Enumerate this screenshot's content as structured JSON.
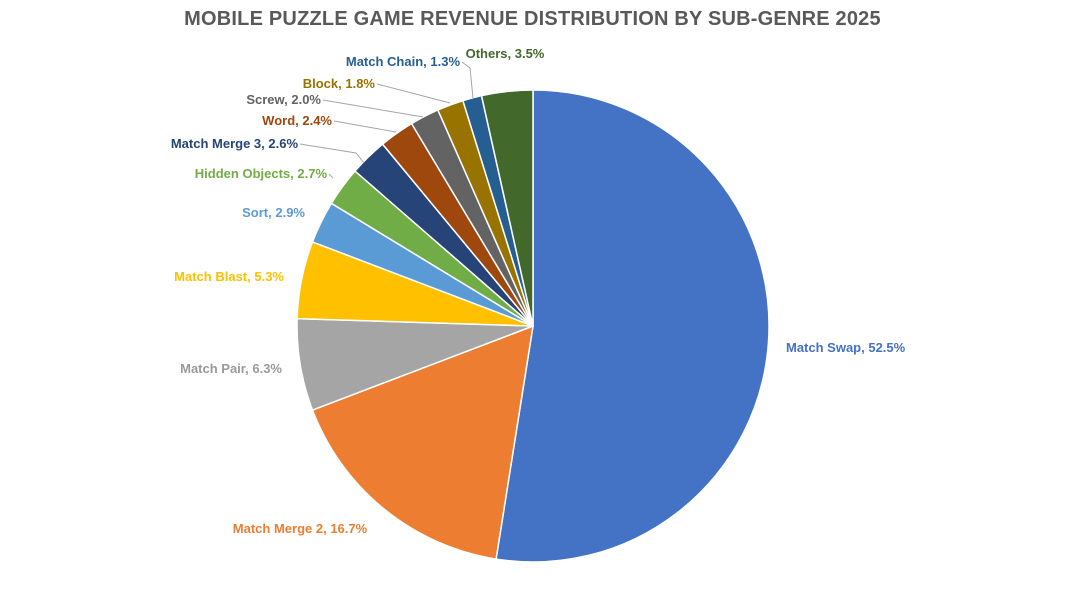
{
  "chart_data": {
    "type": "pie",
    "title": "MOBILE PUZZLE GAME REVENUE DISTRIBUTION BY SUB-GENRE 2025",
    "legend": "none",
    "data_labels": "category name and percentage",
    "slices": [
      {
        "label": "Match Swap, 52.5%",
        "category": "Match Swap",
        "value": 52.5,
        "color": "#4472C4"
      },
      {
        "label": "Match Merge 2, 16.7%",
        "category": "Match Merge 2",
        "value": 16.7,
        "color": "#ED7D31"
      },
      {
        "label": "Match Pair, 6.3%",
        "category": "Match Pair",
        "value": 6.3,
        "color": "#A5A5A5"
      },
      {
        "label": "Match Blast, 5.3%",
        "category": "Match Blast",
        "value": 5.3,
        "color": "#FFC000"
      },
      {
        "label": "Sort, 2.9%",
        "category": "Sort",
        "value": 2.9,
        "color": "#5B9BD5"
      },
      {
        "label": "Hidden Objects, 2.7%",
        "category": "Hidden Objects",
        "value": 2.7,
        "color": "#70AD47"
      },
      {
        "label": "Match Merge 3, 2.6%",
        "category": "Match Merge 3",
        "value": 2.6,
        "color": "#264478"
      },
      {
        "label": "Word, 2.4%",
        "category": "Word",
        "value": 2.4,
        "color": "#9E480E"
      },
      {
        "label": "Screw, 2.0%",
        "category": "Screw",
        "value": 2.0,
        "color": "#636363"
      },
      {
        "label": "Block, 1.8%",
        "category": "Block",
        "value": 1.8,
        "color": "#997300"
      },
      {
        "label": "Match Chain, 1.3%",
        "category": "Match Chain",
        "value": 1.3,
        "color": "#255E91"
      },
      {
        "label": "Others, 3.5%",
        "category": "Others",
        "value": 3.5,
        "color": "#43682B"
      }
    ]
  }
}
